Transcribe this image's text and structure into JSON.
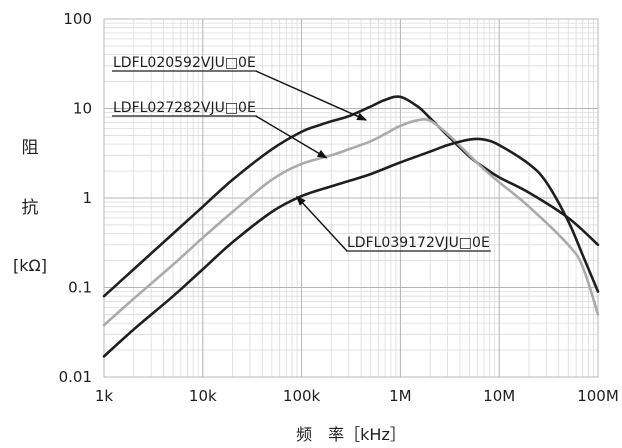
{
  "chart_data": {
    "type": "line",
    "xlabel": "频　率［kHz］",
    "ylabel": {
      "line1": "阻",
      "line2": "抗",
      "unit": "[kΩ]"
    },
    "x_scale": "log",
    "y_scale": "log",
    "xlim": [
      1,
      100000
    ],
    "ylim": [
      0.01,
      100
    ],
    "x_ticks": [
      {
        "value": 1,
        "label": "1k"
      },
      {
        "value": 10,
        "label": "10k"
      },
      {
        "value": 100,
        "label": "100k"
      },
      {
        "value": 1000,
        "label": "1M"
      },
      {
        "value": 10000,
        "label": "10M"
      },
      {
        "value": 100000,
        "label": "100M"
      }
    ],
    "y_ticks": [
      {
        "value": 0.01,
        "label": "0.01"
      },
      {
        "value": 0.1,
        "label": "0.1"
      },
      {
        "value": 1,
        "label": "1"
      },
      {
        "value": 10,
        "label": "10"
      },
      {
        "value": 100,
        "label": "100"
      }
    ],
    "grid": true,
    "series": [
      {
        "name": "LDFL020592VJU□0E",
        "color": "#1f1f1f",
        "x": [
          1,
          2,
          5,
          10,
          20,
          50,
          100,
          150,
          200,
          300,
          500,
          700,
          1000,
          1500,
          2000,
          3000,
          5000,
          7000,
          10000,
          20000,
          50000,
          100000
        ],
        "y": [
          0.08,
          0.16,
          0.4,
          0.8,
          1.6,
          3.5,
          5.5,
          6.5,
          7.2,
          8.2,
          10.5,
          12.5,
          13.5,
          10.5,
          7.8,
          5.0,
          2.9,
          2.2,
          1.7,
          1.15,
          0.6,
          0.3
        ]
      },
      {
        "name": "LDFL027282VJU□0E",
        "color": "#aaaaaa",
        "x": [
          1,
          2,
          5,
          10,
          20,
          50,
          100,
          200,
          300,
          500,
          700,
          1000,
          1500,
          2000,
          3000,
          5000,
          7000,
          10000,
          20000,
          50000,
          70000,
          100000
        ],
        "y": [
          0.038,
          0.075,
          0.18,
          0.36,
          0.7,
          1.6,
          2.4,
          3.0,
          3.5,
          4.3,
          5.2,
          6.4,
          7.4,
          7.3,
          5.2,
          3.0,
          2.1,
          1.5,
          0.8,
          0.3,
          0.17,
          0.05
        ]
      },
      {
        "name": "LDFL039172VJU□0E",
        "color": "#1f1f1f",
        "x": [
          1,
          2,
          5,
          10,
          20,
          50,
          100,
          200,
          300,
          500,
          1000,
          2000,
          3000,
          5000,
          7000,
          10000,
          20000,
          30000,
          50000,
          70000,
          100000
        ],
        "y": [
          0.017,
          0.034,
          0.08,
          0.16,
          0.32,
          0.7,
          1.05,
          1.35,
          1.55,
          1.85,
          2.5,
          3.3,
          3.9,
          4.5,
          4.5,
          3.9,
          2.4,
          1.5,
          0.55,
          0.23,
          0.09
        ]
      }
    ],
    "annotations": [
      {
        "text": "LDFL020592VJU□0E",
        "x": 480,
        "y": 7.2
      },
      {
        "text": "LDFL027282VJU□0E",
        "x": 190,
        "y": 2.7
      },
      {
        "text": "LDFL039172VJU□0E",
        "x": 85,
        "y": 1.1
      }
    ]
  }
}
